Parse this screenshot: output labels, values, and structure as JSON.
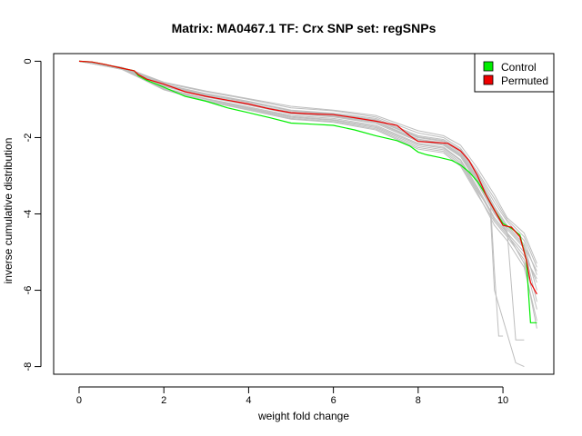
{
  "chart_data": {
    "type": "line",
    "title": "Matrix: MA0467.1 TF: Crx SNP set: regSNPs",
    "xlabel": "weight fold change",
    "ylabel": "inverse cumulative distribution",
    "xlim": [
      -0.6,
      11.2
    ],
    "ylim": [
      -8.2,
      0.2
    ],
    "xticks": [
      0,
      2,
      4,
      6,
      8,
      10
    ],
    "yticks": [
      0,
      -2,
      -4,
      -6,
      -8
    ],
    "grid": false,
    "legend_position": "top-right",
    "legend": [
      {
        "label": "Control",
        "color": "#00ee00"
      },
      {
        "label": "Permuted",
        "color": "#ee0000"
      }
    ],
    "series": [
      {
        "name": "Control",
        "color": "#00ee00",
        "points": [
          [
            0,
            0
          ],
          [
            0.3,
            -0.02
          ],
          [
            0.6,
            -0.08
          ],
          [
            1.0,
            -0.18
          ],
          [
            1.3,
            -0.25
          ],
          [
            1.4,
            -0.38
          ],
          [
            1.6,
            -0.5
          ],
          [
            2.0,
            -0.68
          ],
          [
            2.5,
            -0.92
          ],
          [
            3.0,
            -1.05
          ],
          [
            3.5,
            -1.22
          ],
          [
            4.0,
            -1.35
          ],
          [
            4.5,
            -1.48
          ],
          [
            5.0,
            -1.62
          ],
          [
            5.5,
            -1.65
          ],
          [
            6.0,
            -1.68
          ],
          [
            6.5,
            -1.8
          ],
          [
            7.0,
            -1.95
          ],
          [
            7.5,
            -2.08
          ],
          [
            7.8,
            -2.22
          ],
          [
            8.0,
            -2.38
          ],
          [
            8.2,
            -2.45
          ],
          [
            8.5,
            -2.52
          ],
          [
            8.8,
            -2.6
          ],
          [
            9.0,
            -2.72
          ],
          [
            9.2,
            -2.9
          ],
          [
            9.4,
            -3.15
          ],
          [
            9.6,
            -3.5
          ],
          [
            9.8,
            -3.9
          ],
          [
            10.0,
            -4.25
          ],
          [
            10.2,
            -4.38
          ],
          [
            10.4,
            -4.55
          ],
          [
            10.55,
            -5.2
          ],
          [
            10.65,
            -6.85
          ],
          [
            10.8,
            -6.85
          ]
        ]
      },
      {
        "name": "Permuted",
        "color": "#ee0000",
        "points": [
          [
            0,
            0
          ],
          [
            0.3,
            -0.02
          ],
          [
            0.6,
            -0.08
          ],
          [
            1.0,
            -0.18
          ],
          [
            1.3,
            -0.25
          ],
          [
            1.4,
            -0.35
          ],
          [
            1.6,
            -0.47
          ],
          [
            2.0,
            -0.6
          ],
          [
            2.5,
            -0.8
          ],
          [
            3.0,
            -0.92
          ],
          [
            3.5,
            -1.02
          ],
          [
            4.0,
            -1.12
          ],
          [
            4.5,
            -1.25
          ],
          [
            5.0,
            -1.35
          ],
          [
            5.5,
            -1.38
          ],
          [
            6.0,
            -1.4
          ],
          [
            6.5,
            -1.48
          ],
          [
            7.0,
            -1.57
          ],
          [
            7.5,
            -1.68
          ],
          [
            7.8,
            -1.95
          ],
          [
            8.0,
            -2.1
          ],
          [
            8.3,
            -2.12
          ],
          [
            8.7,
            -2.15
          ],
          [
            9.0,
            -2.35
          ],
          [
            9.2,
            -2.6
          ],
          [
            9.4,
            -3.0
          ],
          [
            9.6,
            -3.5
          ],
          [
            9.8,
            -3.9
          ],
          [
            10.0,
            -4.3
          ],
          [
            10.2,
            -4.35
          ],
          [
            10.4,
            -4.6
          ],
          [
            10.55,
            -5.2
          ],
          [
            10.65,
            -5.8
          ],
          [
            10.8,
            -6.1
          ]
        ]
      }
    ],
    "background_series": [
      {
        "points": [
          [
            0,
            0
          ],
          [
            1,
            -0.16
          ],
          [
            1.4,
            -0.3
          ],
          [
            2,
            -0.55
          ],
          [
            3,
            -0.78
          ],
          [
            4,
            -0.98
          ],
          [
            5,
            -1.18
          ],
          [
            6,
            -1.28
          ],
          [
            7,
            -1.42
          ],
          [
            8,
            -1.82
          ],
          [
            8.6,
            -1.95
          ],
          [
            9,
            -2.2
          ],
          [
            9.4,
            -2.8
          ],
          [
            9.8,
            -3.5
          ],
          [
            10.1,
            -4.1
          ],
          [
            10.5,
            -4.5
          ],
          [
            10.8,
            -5.3
          ]
        ]
      },
      {
        "points": [
          [
            0,
            0
          ],
          [
            1,
            -0.17
          ],
          [
            1.4,
            -0.32
          ],
          [
            2,
            -0.6
          ],
          [
            3,
            -0.85
          ],
          [
            4,
            -1.05
          ],
          [
            5,
            -1.28
          ],
          [
            6,
            -1.36
          ],
          [
            7,
            -1.5
          ],
          [
            8,
            -1.95
          ],
          [
            8.6,
            -2.05
          ],
          [
            9,
            -2.32
          ],
          [
            9.4,
            -2.95
          ],
          [
            9.8,
            -3.7
          ],
          [
            10.1,
            -4.2
          ],
          [
            10.5,
            -4.7
          ],
          [
            10.8,
            -5.6
          ]
        ]
      },
      {
        "points": [
          [
            0,
            0
          ],
          [
            1,
            -0.18
          ],
          [
            1.4,
            -0.33
          ],
          [
            2,
            -0.62
          ],
          [
            3,
            -0.88
          ],
          [
            4,
            -1.08
          ],
          [
            5,
            -1.3
          ],
          [
            6,
            -1.4
          ],
          [
            7,
            -1.55
          ],
          [
            8,
            -2.0
          ],
          [
            8.6,
            -2.1
          ],
          [
            9,
            -2.4
          ],
          [
            9.4,
            -3.05
          ],
          [
            9.7,
            -3.6
          ],
          [
            9.8,
            -5.5
          ],
          [
            9.9,
            -7.2
          ],
          [
            10.0,
            -7.2
          ]
        ]
      },
      {
        "points": [
          [
            0,
            0
          ],
          [
            1,
            -0.18
          ],
          [
            1.4,
            -0.34
          ],
          [
            2,
            -0.63
          ],
          [
            3,
            -0.9
          ],
          [
            4,
            -1.12
          ],
          [
            5,
            -1.33
          ],
          [
            6,
            -1.42
          ],
          [
            7,
            -1.58
          ],
          [
            8,
            -2.05
          ],
          [
            8.6,
            -2.15
          ],
          [
            9,
            -2.45
          ],
          [
            9.4,
            -3.1
          ],
          [
            9.8,
            -3.9
          ],
          [
            10.1,
            -4.4
          ],
          [
            10.5,
            -4.9
          ],
          [
            10.8,
            -6.3
          ]
        ]
      },
      {
        "points": [
          [
            0,
            0
          ],
          [
            1,
            -0.19
          ],
          [
            1.4,
            -0.36
          ],
          [
            2,
            -0.66
          ],
          [
            3,
            -0.94
          ],
          [
            4,
            -1.15
          ],
          [
            5,
            -1.38
          ],
          [
            6,
            -1.46
          ],
          [
            7,
            -1.63
          ],
          [
            8,
            -2.1
          ],
          [
            8.6,
            -2.2
          ],
          [
            9,
            -2.5
          ],
          [
            9.4,
            -3.2
          ],
          [
            9.8,
            -4.0
          ],
          [
            10.1,
            -4.45
          ],
          [
            10.3,
            -7.3
          ],
          [
            10.5,
            -7.3
          ]
        ]
      },
      {
        "points": [
          [
            0,
            0
          ],
          [
            1,
            -0.2
          ],
          [
            1.4,
            -0.38
          ],
          [
            2,
            -0.7
          ],
          [
            3,
            -0.98
          ],
          [
            4,
            -1.2
          ],
          [
            5,
            -1.42
          ],
          [
            6,
            -1.5
          ],
          [
            7,
            -1.68
          ],
          [
            8,
            -2.15
          ],
          [
            8.6,
            -2.25
          ],
          [
            9,
            -2.58
          ],
          [
            9.4,
            -3.3
          ],
          [
            9.8,
            -4.1
          ],
          [
            10.1,
            -4.5
          ],
          [
            10.5,
            -5.0
          ],
          [
            10.8,
            -5.8
          ]
        ]
      },
      {
        "points": [
          [
            0,
            0
          ],
          [
            1,
            -0.2
          ],
          [
            1.4,
            -0.4
          ],
          [
            2,
            -0.72
          ],
          [
            3,
            -1.0
          ],
          [
            4,
            -1.24
          ],
          [
            5,
            -1.47
          ],
          [
            6,
            -1.55
          ],
          [
            7,
            -1.74
          ],
          [
            8,
            -2.22
          ],
          [
            8.6,
            -2.32
          ],
          [
            9,
            -2.65
          ],
          [
            9.4,
            -3.4
          ],
          [
            9.7,
            -3.9
          ],
          [
            9.8,
            -6.0
          ],
          [
            10.3,
            -7.9
          ],
          [
            10.5,
            -8.0
          ]
        ]
      },
      {
        "points": [
          [
            0,
            0
          ],
          [
            1,
            -0.21
          ],
          [
            1.4,
            -0.42
          ],
          [
            2,
            -0.75
          ],
          [
            3,
            -1.05
          ],
          [
            4,
            -1.28
          ],
          [
            5,
            -1.52
          ],
          [
            6,
            -1.6
          ],
          [
            7,
            -1.8
          ],
          [
            8,
            -2.3
          ],
          [
            8.6,
            -2.4
          ],
          [
            9,
            -2.75
          ],
          [
            9.4,
            -3.5
          ],
          [
            9.8,
            -4.2
          ],
          [
            10.1,
            -4.6
          ],
          [
            10.5,
            -5.2
          ],
          [
            10.8,
            -6.5
          ]
        ]
      },
      {
        "points": [
          [
            0,
            0
          ],
          [
            1,
            -0.16
          ],
          [
            1.4,
            -0.31
          ],
          [
            2,
            -0.57
          ],
          [
            3,
            -0.8
          ],
          [
            4,
            -1.0
          ],
          [
            5,
            -1.22
          ],
          [
            6,
            -1.3
          ],
          [
            7,
            -1.46
          ],
          [
            8,
            -1.88
          ],
          [
            8.6,
            -2.0
          ],
          [
            9,
            -2.28
          ],
          [
            9.4,
            -2.9
          ],
          [
            9.8,
            -3.6
          ],
          [
            10.1,
            -4.15
          ],
          [
            10.5,
            -4.6
          ],
          [
            10.8,
            -5.4
          ]
        ]
      },
      {
        "points": [
          [
            0,
            0
          ],
          [
            1,
            -0.17
          ],
          [
            1.4,
            -0.33
          ],
          [
            2,
            -0.61
          ],
          [
            3,
            -0.86
          ],
          [
            4,
            -1.06
          ],
          [
            5,
            -1.29
          ],
          [
            6,
            -1.38
          ],
          [
            7,
            -1.53
          ],
          [
            8,
            -1.98
          ],
          [
            8.6,
            -2.08
          ],
          [
            9,
            -2.36
          ],
          [
            9.4,
            -3.0
          ],
          [
            9.8,
            -3.8
          ],
          [
            10.1,
            -4.3
          ],
          [
            10.5,
            -4.8
          ],
          [
            10.8,
            -6.0
          ]
        ]
      },
      {
        "points": [
          [
            0,
            0
          ],
          [
            1,
            -0.19
          ],
          [
            1.4,
            -0.35
          ],
          [
            2,
            -0.65
          ],
          [
            3,
            -0.92
          ],
          [
            4,
            -1.14
          ],
          [
            5,
            -1.36
          ],
          [
            6,
            -1.45
          ],
          [
            7,
            -1.6
          ],
          [
            8,
            -2.08
          ],
          [
            8.6,
            -2.18
          ],
          [
            9,
            -2.48
          ],
          [
            9.4,
            -3.15
          ],
          [
            9.8,
            -3.95
          ],
          [
            10.1,
            -4.5
          ],
          [
            10.5,
            -5.3
          ],
          [
            10.8,
            -7.0
          ]
        ]
      },
      {
        "points": [
          [
            0,
            0
          ],
          [
            1,
            -0.2
          ],
          [
            1.4,
            -0.39
          ],
          [
            2,
            -0.71
          ],
          [
            3,
            -0.99
          ],
          [
            4,
            -1.22
          ],
          [
            5,
            -1.45
          ],
          [
            6,
            -1.53
          ],
          [
            7,
            -1.71
          ],
          [
            8,
            -2.18
          ],
          [
            8.6,
            -2.28
          ],
          [
            9,
            -2.6
          ],
          [
            9.4,
            -3.35
          ],
          [
            9.8,
            -4.15
          ],
          [
            10.1,
            -4.55
          ],
          [
            10.5,
            -5.1
          ],
          [
            10.8,
            -5.7
          ]
        ]
      },
      {
        "points": [
          [
            0,
            0
          ],
          [
            1,
            -0.21
          ],
          [
            1.4,
            -0.41
          ],
          [
            2,
            -0.74
          ],
          [
            3,
            -1.03
          ],
          [
            4,
            -1.26
          ],
          [
            5,
            -1.5
          ],
          [
            6,
            -1.58
          ],
          [
            7,
            -1.77
          ],
          [
            8,
            -2.26
          ],
          [
            8.6,
            -2.36
          ],
          [
            9,
            -2.7
          ],
          [
            9.4,
            -3.45
          ],
          [
            9.8,
            -4.3
          ],
          [
            10.1,
            -4.7
          ],
          [
            10.5,
            -5.4
          ],
          [
            10.8,
            -6.8
          ]
        ]
      },
      {
        "points": [
          [
            0,
            0
          ],
          [
            1,
            -0.18
          ],
          [
            1.4,
            -0.34
          ],
          [
            2,
            -0.64
          ],
          [
            3,
            -0.91
          ],
          [
            4,
            -1.11
          ],
          [
            5,
            -1.34
          ],
          [
            6,
            -1.43
          ],
          [
            7,
            -1.59
          ],
          [
            8,
            -2.04
          ],
          [
            8.6,
            -2.14
          ],
          [
            9,
            -2.44
          ],
          [
            9.4,
            -3.08
          ],
          [
            9.8,
            -3.85
          ],
          [
            10.1,
            -4.35
          ],
          [
            10.5,
            -4.85
          ],
          [
            10.8,
            -5.5
          ]
        ]
      }
    ]
  }
}
